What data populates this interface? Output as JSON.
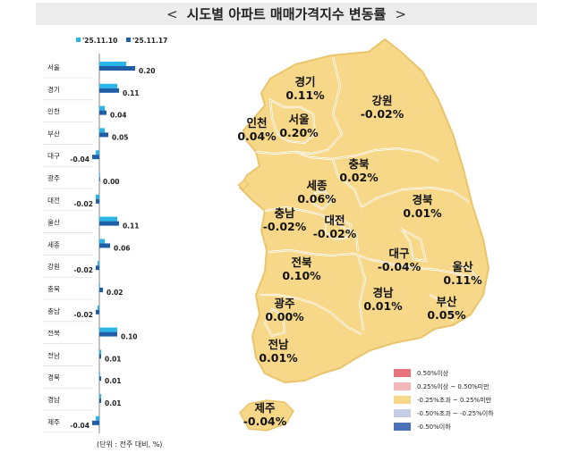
{
  "title": "시도별 아파트 매매가격지수 변동률",
  "title_arrows": {
    "left": "<",
    "right": ">"
  },
  "chart_data": {
    "type": "bar",
    "orientation": "horizontal",
    "categories": [
      "서울",
      "경기",
      "인천",
      "부산",
      "대구",
      "광주",
      "대전",
      "울산",
      "세종",
      "강원",
      "충북",
      "충남",
      "전북",
      "전남",
      "경북",
      "경남",
      "제주"
    ],
    "series": [
      {
        "name": "'25.11.10",
        "color": "#29b6e8",
        "values": [
          0.15,
          0.1,
          0.03,
          0.03,
          -0.02,
          0.0,
          -0.02,
          0.1,
          0.03,
          -0.01,
          0.0,
          -0.01,
          0.1,
          0.01,
          0.0,
          0.01,
          -0.02
        ]
      },
      {
        "name": "'25.11.17",
        "color": "#1f5fa8",
        "values": [
          0.2,
          0.11,
          0.04,
          0.05,
          -0.04,
          0.0,
          -0.02,
          0.11,
          0.06,
          -0.02,
          0.02,
          -0.02,
          0.1,
          0.01,
          0.01,
          0.01,
          -0.04
        ]
      }
    ],
    "value_labels": [
      "0.20",
      "0.11",
      "0.04",
      "0.05",
      "-0.04",
      "0.00",
      "-0.02",
      "0.11",
      "0.06",
      "-0.02",
      "0.02",
      "-0.02",
      "0.10",
      "0.01",
      "0.01",
      "0.01",
      "-0.04"
    ],
    "xlim": [
      -0.05,
      0.22
    ],
    "grid": false,
    "legend_position": "top"
  },
  "unit_note": "(단위 : 전주 대비, %)",
  "map_labels": [
    {
      "name": "경기",
      "value": "0.11%"
    },
    {
      "name": "강원",
      "value": "-0.02%"
    },
    {
      "name": "인천",
      "value": "0.04%"
    },
    {
      "name": "서울",
      "value": "0.20%"
    },
    {
      "name": "충북",
      "value": "0.02%"
    },
    {
      "name": "세종",
      "value": "0.06%"
    },
    {
      "name": "경북",
      "value": "0.01%"
    },
    {
      "name": "충남",
      "value": "-0.02%"
    },
    {
      "name": "대전",
      "value": "-0.02%"
    },
    {
      "name": "대구",
      "value": "-0.04%"
    },
    {
      "name": "전북",
      "value": "0.10%"
    },
    {
      "name": "울산",
      "value": "0.11%"
    },
    {
      "name": "광주",
      "value": "0.00%"
    },
    {
      "name": "경남",
      "value": "0.01%"
    },
    {
      "name": "부산",
      "value": "0.05%"
    },
    {
      "name": "전남",
      "value": "0.01%"
    },
    {
      "name": "제주",
      "value": "-0.04%"
    }
  ],
  "map_fill_color": "#f7d889",
  "legend": [
    {
      "label": "0.50%이상",
      "color": "#e8727a"
    },
    {
      "label": "0.25%이상 ~ 0.50%미만",
      "color": "#f3b8b8"
    },
    {
      "label": "-0.25%초과 ~ 0.25%미만",
      "color": "#f7d889"
    },
    {
      "label": "-0.50%초과 ~ -0.25%이하",
      "color": "#c3cde3"
    },
    {
      "label": "-0.50%이하",
      "color": "#4a72b8"
    }
  ]
}
